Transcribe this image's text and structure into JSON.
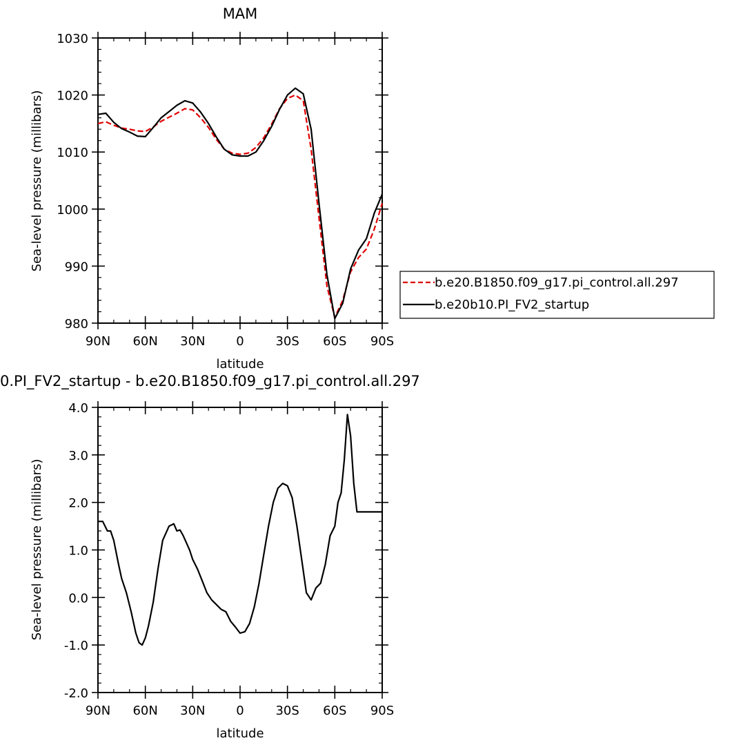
{
  "chart_data": [
    {
      "type": "line",
      "title": "MAM",
      "xlabel": "latitude",
      "ylabel": "Sea-level pressure (millibars)",
      "x_tick_labels": [
        "90N",
        "60N",
        "30N",
        "0",
        "30S",
        "60S",
        "90S"
      ],
      "y_tick_labels": [
        "980",
        "990",
        "1000",
        "1010",
        "1020",
        "1030"
      ],
      "xlim": [
        90,
        -90
      ],
      "ylim": [
        980,
        1030
      ],
      "grid": false,
      "legend_position": "right",
      "x": [
        90,
        85,
        80,
        75,
        70,
        65,
        60,
        55,
        50,
        45,
        40,
        35,
        30,
        25,
        20,
        15,
        10,
        5,
        0,
        -5,
        -10,
        -15,
        -20,
        -25,
        -30,
        -35,
        -40,
        -45,
        -50,
        -55,
        -60,
        -65,
        -70,
        -75,
        -80,
        -85,
        -90
      ],
      "series": [
        {
          "name": "b.e20.B1850.f09_g17.pi_control.all.297",
          "color": "#e00000",
          "dash": "dashed",
          "values": [
            1015.0,
            1015.3,
            1014.7,
            1014.2,
            1014.0,
            1013.7,
            1013.6,
            1014.4,
            1015.4,
            1016.1,
            1016.8,
            1017.6,
            1017.4,
            1016.0,
            1014.3,
            1012.2,
            1010.5,
            1009.8,
            1009.6,
            1009.8,
            1010.8,
            1012.5,
            1014.9,
            1017.6,
            1019.4,
            1020.0,
            1019.0,
            1010.5,
            998.5,
            986.5,
            981.0,
            984.0,
            989.0,
            991.5,
            993.0,
            996.5,
            1001.0
          ]
        },
        {
          "name": "b.e20b10.PI_FV2_startup",
          "color": "#000000",
          "dash": "solid",
          "values": [
            1016.6,
            1016.8,
            1015.2,
            1014.1,
            1013.5,
            1012.8,
            1012.7,
            1014.3,
            1016.0,
            1017.1,
            1018.2,
            1019.0,
            1018.6,
            1017.0,
            1015.0,
            1012.6,
            1010.5,
            1009.5,
            1009.3,
            1009.3,
            1010.0,
            1012.0,
            1014.5,
            1017.5,
            1020.0,
            1021.2,
            1020.2,
            1014.0,
            1001.0,
            988.5,
            980.8,
            983.5,
            989.5,
            992.8,
            994.8,
            999.3,
            1002.6
          ]
        }
      ]
    },
    {
      "type": "line",
      "title": "0.PI_FV2_startup - b.e20.B1850.f09_g17.pi_control.all.297",
      "xlabel": "latitude",
      "ylabel": "Sea-level pressure (millibars)",
      "x_tick_labels": [
        "90N",
        "60N",
        "30N",
        "0",
        "30S",
        "60S",
        "90S"
      ],
      "y_tick_labels": [
        "-2.0",
        "-1.0",
        "0.0",
        "1.0",
        "2.0",
        "3.0",
        "4.0"
      ],
      "xlim": [
        90,
        -90
      ],
      "ylim": [
        -2.0,
        4.0
      ],
      "grid": false,
      "x": [
        90,
        87,
        84,
        82,
        80,
        77,
        75,
        72,
        69,
        66,
        64,
        62,
        60,
        58,
        55,
        52,
        49,
        45,
        42,
        40,
        38,
        36,
        34,
        32,
        30,
        27,
        24,
        21,
        18,
        15,
        12,
        9,
        6,
        3,
        0,
        -3,
        -6,
        -9,
        -12,
        -15,
        -18,
        -21,
        -24,
        -27,
        -30,
        -33,
        -36,
        -39,
        -42,
        -45,
        -48,
        -51,
        -54,
        -57,
        -60,
        -62,
        -64,
        -66,
        -68,
        -70,
        -72,
        -74,
        -76,
        -78,
        -80,
        -82,
        -84,
        -86,
        -88,
        -90
      ],
      "series": [
        {
          "name": "",
          "color": "#000000",
          "dash": "solid",
          "values": [
            1.6,
            1.6,
            1.4,
            1.4,
            1.2,
            0.7,
            0.4,
            0.1,
            -0.3,
            -0.75,
            -0.95,
            -1.0,
            -0.85,
            -0.6,
            -0.1,
            0.6,
            1.2,
            1.5,
            1.55,
            1.4,
            1.42,
            1.3,
            1.15,
            1.0,
            0.8,
            0.6,
            0.35,
            0.1,
            -0.05,
            -0.15,
            -0.25,
            -0.3,
            -0.5,
            -0.62,
            -0.75,
            -0.72,
            -0.55,
            -0.2,
            0.3,
            0.9,
            1.5,
            2.0,
            2.3,
            2.4,
            2.35,
            2.1,
            1.5,
            0.8,
            0.1,
            -0.05,
            0.2,
            0.3,
            0.7,
            1.3,
            1.5,
            2.0,
            2.2,
            2.9,
            3.85,
            3.4,
            2.4,
            1.8,
            1.8,
            1.8,
            1.8,
            1.8,
            1.8,
            1.8,
            1.8,
            1.8
          ]
        }
      ]
    }
  ]
}
